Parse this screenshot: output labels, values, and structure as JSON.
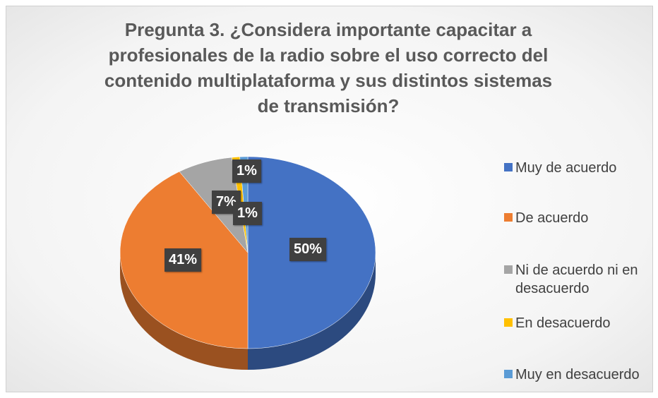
{
  "chart_data": {
    "type": "pie",
    "title": "Pregunta 3. ¿Considera importante capacitar a profesionales de la radio sobre el uso correcto del contenido multiplataforma y sus distintos sistemas de transmisión?",
    "categories": [
      "Muy de acuerdo",
      "De acuerdo",
      "Ni de acuerdo ni en desacuerdo",
      "En desacuerdo",
      "Muy en desacuerdo"
    ],
    "values": [
      50,
      41,
      7,
      1,
      1
    ],
    "value_labels": [
      "50%",
      "41%",
      "7%",
      "1%",
      "1%"
    ],
    "colors": [
      "#4472c4",
      "#ed7d31",
      "#a5a5a5",
      "#ffc000",
      "#5b9bd5"
    ],
    "legend": "right"
  }
}
